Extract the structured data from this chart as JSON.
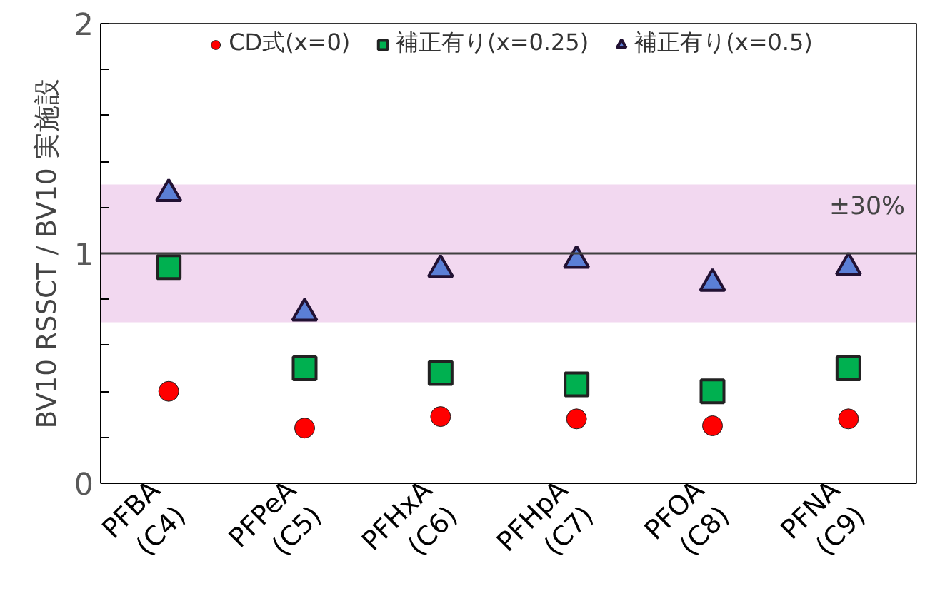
{
  "chart_data": {
    "type": "scatter",
    "ylabel": "BV10 RSSCT / BV10 実施設",
    "categories": [
      "PFBA\n(C4)",
      "PFPeA\n(C5)",
      "PFHxA\n(C6)",
      "PFHpA\n(C7)",
      "PFOA\n(C8)",
      "PFNA\n(C9)"
    ],
    "series": [
      {
        "name": "CD式(x=0)",
        "color": "#ff0000",
        "marker": "circle",
        "values": [
          0.4,
          0.24,
          0.29,
          0.28,
          0.25,
          0.28
        ]
      },
      {
        "name": "補正有り(x=0.25)",
        "color": "#00b050",
        "marker": "square",
        "values": [
          0.94,
          0.5,
          0.48,
          0.43,
          0.4,
          0.5
        ]
      },
      {
        "name": "補正有り(x=0.5)",
        "color": "#5b7fd6",
        "marker": "triangle",
        "values": [
          1.26,
          0.74,
          0.93,
          0.97,
          0.87,
          0.94
        ]
      }
    ],
    "ylim": [
      0,
      2
    ],
    "yticks": [
      0,
      {
        "value": 0.2,
        "label": null
      },
      {
        "value": 0.4,
        "label": null
      },
      {
        "value": 0.6,
        "label": null
      },
      {
        "value": 0.8,
        "label": null
      },
      1,
      {
        "value": 1.2,
        "label": null
      },
      {
        "value": 1.4,
        "label": null
      },
      {
        "value": 1.6,
        "label": null
      },
      {
        "value": 1.8,
        "label": null
      },
      2
    ],
    "ref_lines": [
      {
        "axis": "y",
        "value": 1,
        "color": "#404040"
      }
    ],
    "bands": [
      {
        "axis": "y",
        "from": 0.7,
        "to": 1.3,
        "label": "±30%",
        "color": "#f2d8f0"
      }
    ],
    "grid": false,
    "legend": "top"
  }
}
